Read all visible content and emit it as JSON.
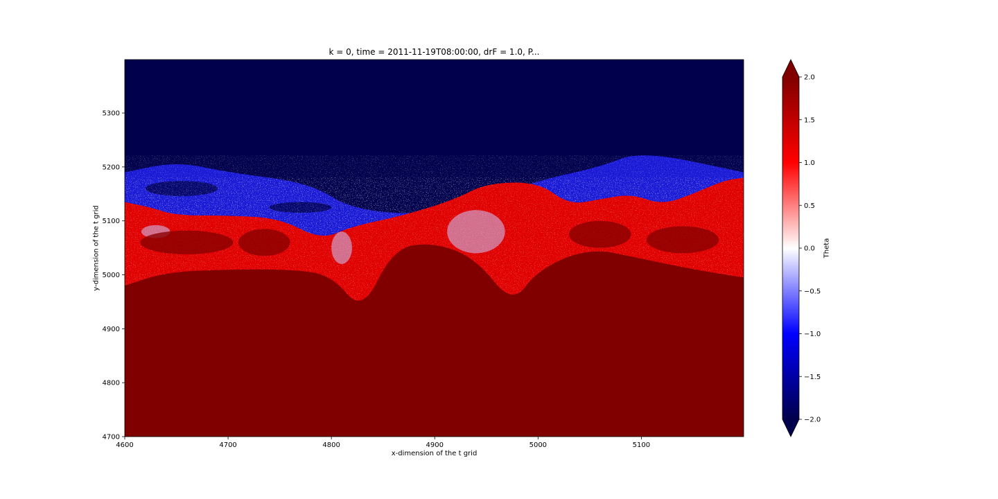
{
  "chart_data": {
    "type": "heatmap",
    "title": "k = 0, time = 2011-11-19T08:00:00, drF = 1.0, P...",
    "xlabel": "x-dimension of the t grid",
    "ylabel": "y-dimension of the t grid",
    "xlim": [
      4600,
      5199
    ],
    "ylim": [
      4700,
      5399
    ],
    "xticks": [
      4600,
      4700,
      4800,
      4900,
      5000,
      5100
    ],
    "yticks": [
      4700,
      4800,
      4900,
      5000,
      5100,
      5200,
      5300
    ],
    "colorbar": {
      "label": "Theta",
      "colormap": "seismic",
      "vmin": -2.0,
      "vmax": 2.0,
      "extend": "both",
      "ticks": [
        "2.0",
        "1.5",
        "1.0",
        "0.5",
        "0.0",
        "−0.5",
        "−1.0",
        "−1.5",
        "−2.0"
      ]
    },
    "field_description": {
      "cold_value": -2.0,
      "warm_value": 2.0,
      "front": [
        [
          4600,
          5135
        ],
        [
          4625,
          5125
        ],
        [
          4650,
          5110
        ],
        [
          4700,
          5110
        ],
        [
          4750,
          5105
        ],
        [
          4790,
          5065
        ],
        [
          4820,
          5090
        ],
        [
          4870,
          5110
        ],
        [
          4920,
          5140
        ],
        [
          4950,
          5170
        ],
        [
          5000,
          5172
        ],
        [
          5030,
          5130
        ],
        [
          5060,
          5140
        ],
        [
          5090,
          5150
        ],
        [
          5120,
          5130
        ],
        [
          5150,
          5150
        ],
        [
          5180,
          5175
        ],
        [
          5199,
          5180
        ]
      ],
      "solid_warm_boundary": [
        [
          4600,
          4980
        ],
        [
          4640,
          5005
        ],
        [
          4700,
          5010
        ],
        [
          4760,
          5010
        ],
        [
          4800,
          5000
        ],
        [
          4830,
          4930
        ],
        [
          4860,
          5050
        ],
        [
          4900,
          5060
        ],
        [
          4940,
          5030
        ],
        [
          4975,
          4945
        ],
        [
          5000,
          5010
        ],
        [
          5050,
          5050
        ],
        [
          5100,
          5030
        ],
        [
          5150,
          5010
        ],
        [
          5199,
          4995
        ]
      ],
      "cold_filaments_above_front": [
        [
          4600,
          5190
        ],
        [
          4650,
          5210
        ],
        [
          4700,
          5190
        ],
        [
          4780,
          5170
        ],
        [
          4820,
          5120
        ],
        [
          4900,
          5110
        ],
        [
          5000,
          5175
        ],
        [
          5060,
          5200
        ],
        [
          5100,
          5230
        ],
        [
          5199,
          5190
        ]
      ]
    }
  }
}
